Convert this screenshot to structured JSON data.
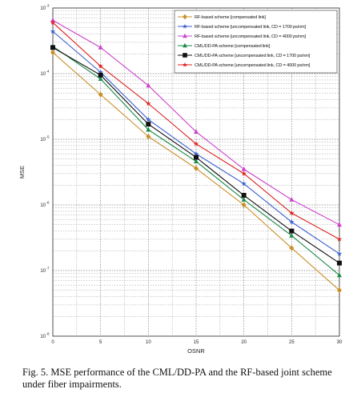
{
  "caption": {
    "line1": "Fig. 5.  MSE performance of the CML/DD-PA and the RF-based joint scheme",
    "line2": "under fiber impairments."
  },
  "chart_data": {
    "type": "line",
    "xlabel": "OSNR",
    "ylabel": "MSE",
    "xlim": [
      0,
      30
    ],
    "ylim": [
      1e-08,
      0.001
    ],
    "yscale": "log",
    "grid": true,
    "legend_position": "top-right",
    "x": [
      0,
      5,
      10,
      15,
      20,
      25,
      30
    ],
    "xticks": [
      "0",
      "5",
      "10",
      "15",
      "20",
      "25",
      "30"
    ],
    "yticks": [
      {
        "value": 0.001,
        "label": "10"
      },
      {
        "value": 0.0001,
        "label": "10"
      },
      {
        "value": 1e-05,
        "label": "10"
      },
      {
        "value": 1e-06,
        "label": "10"
      },
      {
        "value": 1e-07,
        "label": "10"
      },
      {
        "value": 1e-08,
        "label": "10"
      }
    ],
    "ytick_exponents": [
      "-3",
      "-4",
      "-5",
      "-6",
      "-7",
      "-8"
    ],
    "series": [
      {
        "name": "RF-based scheme [compensated link]",
        "color": "#c8902a",
        "marker": "diamond",
        "values": [
          0.00021,
          4.8e-05,
          1.1e-05,
          3.6e-06,
          1e-06,
          2.2e-07,
          5e-08
        ]
      },
      {
        "name": "RF-based scheme [uncompensated link, CD = 1700 ps/nm]",
        "color": "#3a5fd0",
        "marker": "star",
        "values": [
          0.00044,
          0.000105,
          2e-05,
          6e-06,
          2.1e-06,
          5.5e-07,
          1.8e-07
        ]
      },
      {
        "name": "RF-based scheme [uncompensated link, CD = 4000 ps/nm]",
        "color": "#cc44cc",
        "marker": "triangle",
        "values": [
          0.00065,
          0.00025,
          6.6e-05,
          1.3e-05,
          3.5e-06,
          1.2e-06,
          5e-07
        ]
      },
      {
        "name": "CML/DD-PA scheme [compensated link]",
        "color": "#1a8a4a",
        "marker": "triangle",
        "values": [
          0.00026,
          8.3e-05,
          1.4e-05,
          4.6e-06,
          1.2e-06,
          3.4e-07,
          8.5e-08
        ]
      },
      {
        "name": "CML/DD-PA scheme [uncompensated link, CD = 1700 ps/nm]",
        "color": "#111111",
        "marker": "square",
        "values": [
          0.00025,
          9.5e-05,
          1.7e-05,
          5.3e-06,
          1.4e-06,
          4e-07,
          1.3e-07
        ]
      },
      {
        "name": "CML/DD-PA scheme [uncompensated link, CD = 4000 ps/nm]",
        "color": "#dd2222",
        "marker": "star",
        "values": [
          0.0006,
          0.00013,
          3.5e-05,
          8.5e-06,
          3e-06,
          7.5e-07,
          3e-07
        ]
      }
    ]
  }
}
